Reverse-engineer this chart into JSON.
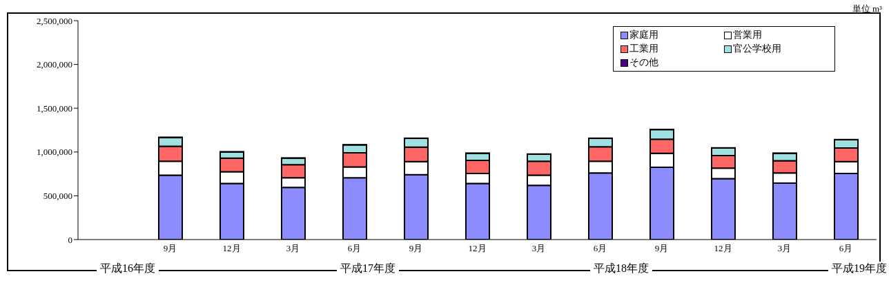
{
  "chart_data": {
    "type": "bar",
    "stacked": true,
    "categories": [
      null,
      "9月",
      "12月",
      "3月",
      "6月",
      "9月",
      "12月",
      "3月",
      "6月",
      "9月",
      "12月",
      "3月",
      "6月"
    ],
    "series": [
      {
        "name": "家庭用",
        "color": "#8c8cff",
        "values": [
          null,
          735000,
          640000,
          595000,
          705000,
          740000,
          640000,
          620000,
          760000,
          825000,
          695000,
          645000,
          755000
        ]
      },
      {
        "name": "営業用",
        "color": "#ffffff",
        "values": [
          null,
          160000,
          135000,
          110000,
          125000,
          150000,
          115000,
          115000,
          135000,
          160000,
          120000,
          115000,
          135000
        ]
      },
      {
        "name": "工業用",
        "color": "#ff6666",
        "values": [
          null,
          170000,
          155000,
          150000,
          160000,
          165000,
          150000,
          160000,
          165000,
          160000,
          145000,
          140000,
          155000
        ]
      },
      {
        "name": "官公学校用",
        "color": "#a0e0e0",
        "values": [
          null,
          100000,
          70000,
          75000,
          90000,
          100000,
          80000,
          80000,
          95000,
          110000,
          85000,
          85000,
          95000
        ]
      },
      {
        "name": "その他",
        "color": "#4b0082",
        "values": [
          null,
          2000,
          2000,
          2000,
          2000,
          2000,
          2000,
          2000,
          2000,
          2000,
          2000,
          2000,
          2000
        ]
      }
    ],
    "ylim": [
      0,
      2500000
    ],
    "yticks": [
      0,
      {
        "value": 500000,
        "label": "500,000"
      },
      {
        "value": 1000000,
        "label": "1,000,000"
      },
      {
        "value": 1500000,
        "label": "1,500,000"
      },
      {
        "value": 2000000,
        "label": "2,000,000"
      },
      {
        "value": 2500000,
        "label": "2,500,000"
      }
    ],
    "grid": false,
    "legend": "top right",
    "annotations": [
      "単位 m³",
      "平成16年度",
      "平成17年度",
      "平成18年度",
      "平成19年度"
    ]
  }
}
